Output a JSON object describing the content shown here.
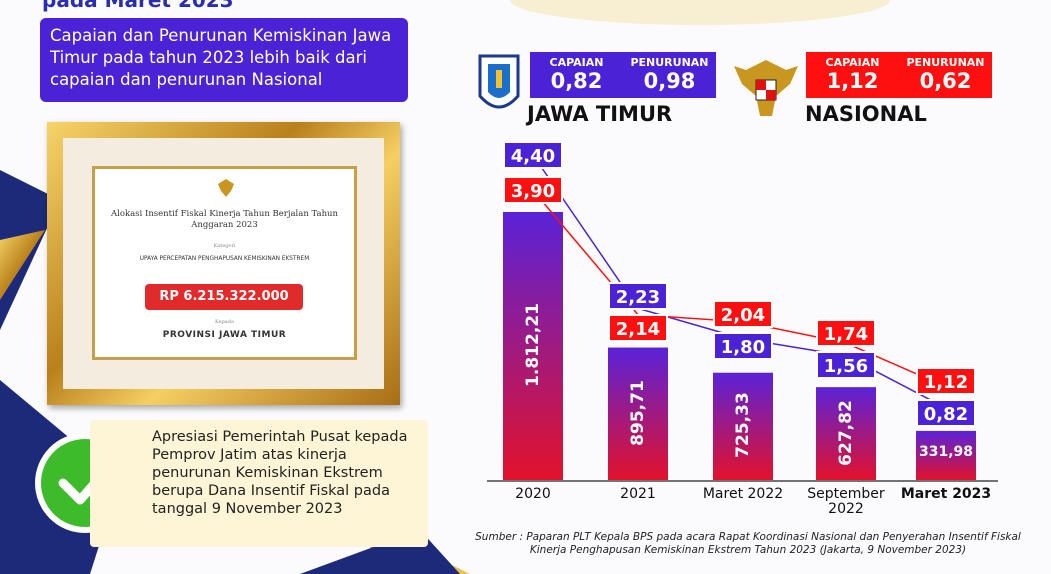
{
  "header": {
    "cut_title": "pada Maret 2023"
  },
  "headline": "Capaian dan Penurunan Kemiskinan Jawa Timur pada tahun 2023 lebih baik dari capaian dan penurunan Nasional",
  "certificate": {
    "title": "Alokasi Insentif Fiskal Kinerja Tahun Berjalan Tahun Anggaran 2023",
    "category_label": "Kategori",
    "category": "UPAYA PERCEPATAN PENGHAPUSAN KEMISKINAN EKSTREM",
    "amount": "RP 6.215.322.000",
    "to_label": "Kepada",
    "recipient": "PROVINSI JAWA TIMUR"
  },
  "note": "Apresiasi Pemerintah Pusat kepada Pemprov Jatim atas kinerja penurunan Kemiskinan Ekstrem berupa Dana Insentif Fiskal pada tanggal 9 November 2023",
  "summary": [
    {
      "capaian_label": "CAPAIAN",
      "capaian": "0,82",
      "penurunan_label": "PENURUNAN",
      "penurunan": "0,98",
      "color": "#4b22d6"
    },
    {
      "capaian_label": "CAPAIAN",
      "capaian": "1,12",
      "penurunan_label": "PENURUNAN",
      "penurunan": "0,62",
      "color": "#ff1010"
    }
  ],
  "chart_data": {
    "type": "bar",
    "categories": [
      "2020",
      "2021",
      "Maret 2022",
      "September 2022",
      "Maret 2023"
    ],
    "values": [
      1812.21,
      895.71,
      725.33,
      627.82,
      331.98
    ],
    "value_labels": [
      "1.812,21",
      "895,71",
      "725,33",
      "627,82",
      "331,98"
    ],
    "bar_colors": [
      "#5a22d8",
      "#e3122b"
    ],
    "series": [
      {
        "name": "JAWA TIMUR",
        "type": "line",
        "color": "#4b22d6",
        "values": [
          4.4,
          2.23,
          1.8,
          1.56,
          0.82
        ],
        "value_labels": [
          "4,40",
          "2,23",
          "1,80",
          "1,56",
          "0,82"
        ]
      },
      {
        "name": "NASIONAL",
        "type": "line",
        "color": "#ff1010",
        "values": [
          3.9,
          2.14,
          2.04,
          1.74,
          1.12
        ],
        "value_labels": [
          "3,90",
          "2,14",
          "2,04",
          "1,74",
          "1,12"
        ]
      }
    ],
    "source": "Sumber : Paparan PLT Kepala BPS pada acara Rapat Koordinasi Nasional dan Penyerahan Insentif Fiskal Kinerja Penghapusan Kemiskinan Ekstrem Tahun 2023 (Jakarta, 9 November 2023)"
  }
}
